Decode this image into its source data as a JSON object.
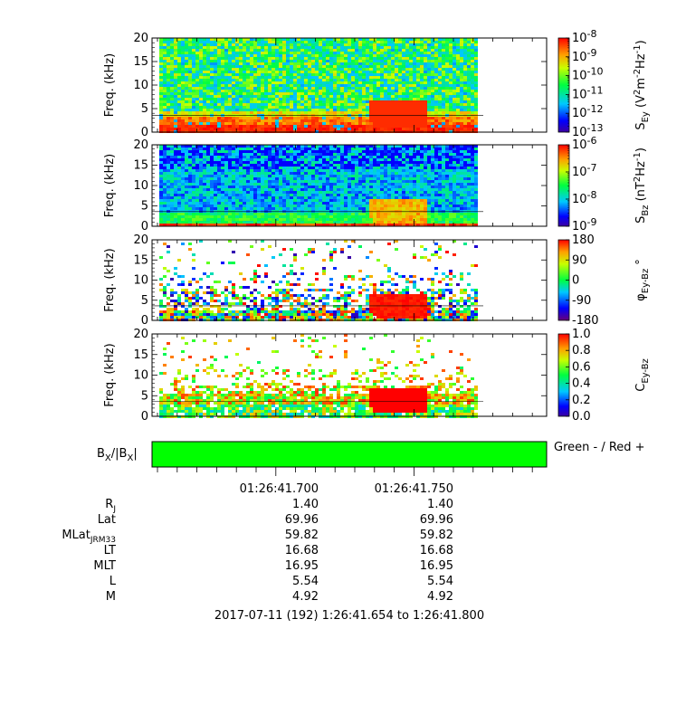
{
  "colors": {
    "background": "#ffffff",
    "spectrum_low": "#0000c8",
    "spectrum_high": "#ff0000",
    "bx_fill": "#00ff00",
    "noise_line": "#000000"
  },
  "chart_data": [
    {
      "type": "heatmap",
      "ylabel": "Freq. (kHz)",
      "ylim": [
        0,
        20
      ],
      "yticks": [
        "0",
        "5",
        "10",
        "15",
        "20"
      ],
      "colorbar": {
        "label_main": "S",
        "label_sub": "Ey",
        "label_unit": "(V",
        "label_unit2": "m",
        "label_unit3": "Hz",
        "label_end": ")",
        "scale": "log",
        "range": [
          1e-13,
          1e-08
        ],
        "ticks": [
          "10^-8",
          "10^-9",
          "10^-10",
          "10^-11",
          "10^-12",
          "10^-13"
        ]
      }
    },
    {
      "type": "heatmap",
      "ylabel": "Freq. (kHz)",
      "ylim": [
        0,
        20
      ],
      "yticks": [
        "0",
        "5",
        "10",
        "15",
        "20"
      ],
      "colorbar": {
        "label_main": "S",
        "label_sub": "Bz",
        "label_unit": "(nT",
        "label_unit3": "Hz",
        "label_end": ")",
        "scale": "log",
        "range": [
          1e-09,
          1e-06
        ],
        "ticks": [
          "10^-6",
          "10^-7",
          "10^-8",
          "10^-9"
        ]
      }
    },
    {
      "type": "heatmap",
      "ylabel": "Freq. (kHz)",
      "ylim": [
        0,
        20
      ],
      "yticks": [
        "0",
        "5",
        "10",
        "15",
        "20"
      ],
      "colorbar": {
        "label_main": "φ",
        "label_sub": "Ey-Bz",
        "label_unit": "°",
        "scale": "linear",
        "range": [
          -180,
          180
        ],
        "ticks": [
          "180",
          "90",
          "0",
          "-90",
          "-180"
        ]
      }
    },
    {
      "type": "heatmap",
      "ylabel": "Freq. (kHz)",
      "ylim": [
        0,
        20
      ],
      "yticks": [
        "0",
        "5",
        "10",
        "15",
        "20"
      ],
      "colorbar": {
        "label_main": "C",
        "label_sub": "Ey-Bz",
        "scale": "linear",
        "range": [
          0,
          1
        ],
        "ticks": [
          "1.0",
          "0.8",
          "0.6",
          "0.4",
          "0.2",
          "0.0"
        ]
      }
    }
  ],
  "bx_panel": {
    "label_b": "B",
    "label_x": "X",
    "label_slash": "/|B",
    "label_x2": "X",
    "label_bar": "|",
    "legend": "Green - / Red +"
  },
  "time_axis": {
    "ticks": [
      "01:26:41.700",
      "01:26:41.750"
    ]
  },
  "ephemeris": {
    "rows": [
      {
        "label": "R",
        "sub": "J",
        "values": [
          "1.40",
          "1.40"
        ]
      },
      {
        "label": "Lat",
        "sub": "",
        "values": [
          "69.96",
          "69.96"
        ]
      },
      {
        "label": "MLat",
        "sub": "JRM33",
        "values": [
          "59.82",
          "59.82"
        ]
      },
      {
        "label": "LT",
        "sub": "",
        "values": [
          "16.68",
          "16.68"
        ]
      },
      {
        "label": "MLT",
        "sub": "",
        "values": [
          "16.95",
          "16.95"
        ]
      },
      {
        "label": "L",
        "sub": "",
        "values": [
          "5.54",
          "5.54"
        ]
      },
      {
        "label": "M",
        "sub": "",
        "values": [
          "4.92",
          "4.92"
        ]
      }
    ]
  },
  "footer": "2017-07-11 (192) 1:26:41.654 to 1:26:41.800"
}
